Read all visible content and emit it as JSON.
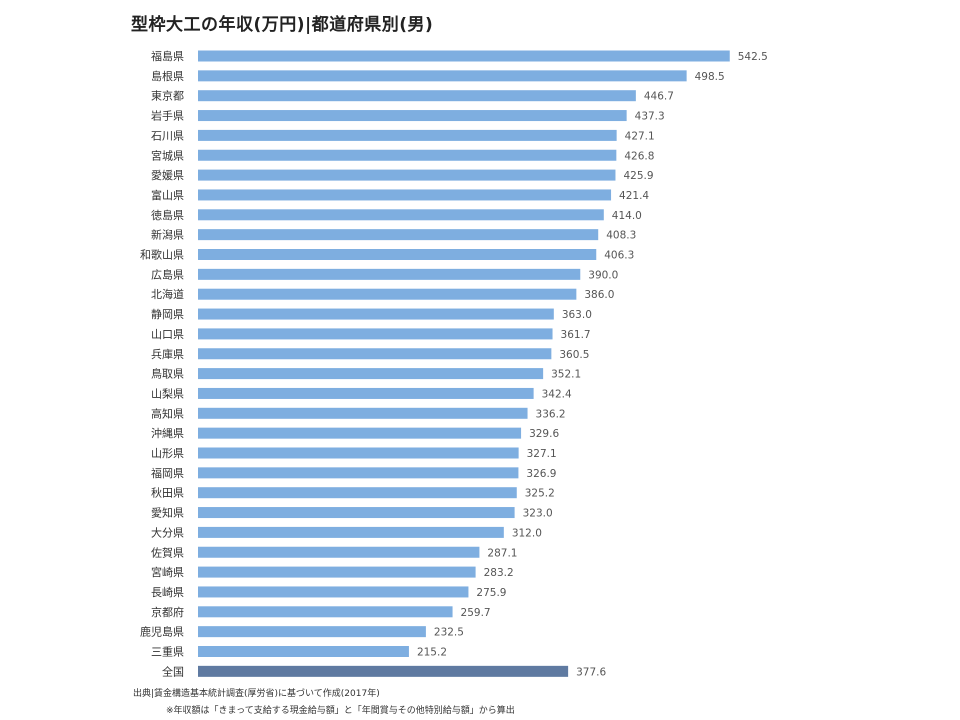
{
  "title": "型枠大工の年収(万円)|都道府県別(男)",
  "source_note": "出典|賃金構造基本統計調査(厚労省)に基づいて作成(2017年)",
  "income_note": "※年収額は「きまって支給する現金給与額」と「年間賞与その他特別給与額」から算出",
  "colors": {
    "bar": "#7eaee0",
    "highlight_bar": "#5f7aa1",
    "value_label": "#555555",
    "category_label": "#333333"
  },
  "chart_data": {
    "type": "bar",
    "orientation": "horizontal",
    "title": "型枠大工の年収(万円)|都道府県別(男)",
    "xlabel": "",
    "ylabel": "",
    "xlim": [
      0,
      600
    ],
    "grid": false,
    "legend": "none",
    "categories": [
      "福島県",
      "島根県",
      "東京都",
      "岩手県",
      "石川県",
      "宮城県",
      "愛媛県",
      "富山県",
      "徳島県",
      "新潟県",
      "和歌山県",
      "広島県",
      "北海道",
      "静岡県",
      "山口県",
      "兵庫県",
      "鳥取県",
      "山梨県",
      "高知県",
      "沖縄県",
      "山形県",
      "福岡県",
      "秋田県",
      "愛知県",
      "大分県",
      "佐賀県",
      "宮崎県",
      "長崎県",
      "京都府",
      "鹿児島県",
      "三重県",
      "全国"
    ],
    "values": [
      542.5,
      498.5,
      446.7,
      437.3,
      427.1,
      426.8,
      425.9,
      421.4,
      414.0,
      408.3,
      406.3,
      390.0,
      386.0,
      363.0,
      361.7,
      360.5,
      352.1,
      342.4,
      336.2,
      329.6,
      327.1,
      326.9,
      325.2,
      323.0,
      312.0,
      287.1,
      283.2,
      275.9,
      259.7,
      232.5,
      215.2,
      377.6
    ],
    "value_labels": [
      "542.5",
      "498.5",
      "446.7",
      "437.3",
      "427.1",
      "426.8",
      "425.9",
      "421.4",
      "414.0",
      "408.3",
      "406.3",
      "390.0",
      "386.0",
      "363.0",
      "361.7",
      "360.5",
      "352.1",
      "342.4",
      "336.2",
      "329.6",
      "327.1",
      "326.9",
      "325.2",
      "323.0",
      "312.0",
      "287.1",
      "283.2",
      "275.9",
      "259.7",
      "232.5",
      "215.2",
      "377.6"
    ],
    "highlight": [
      "全国"
    ]
  }
}
